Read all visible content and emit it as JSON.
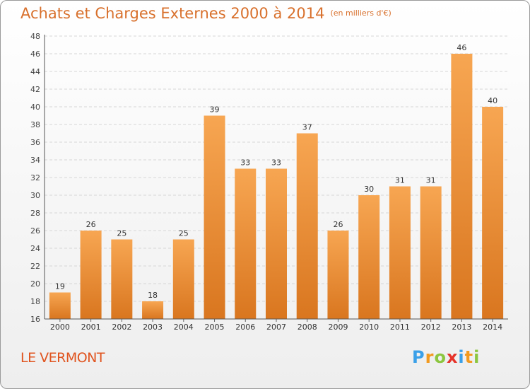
{
  "title": "Achats et Charges Externes 2000 à 2014",
  "subtitle": "(en milliers d'€)",
  "commune": "LE VERMONT",
  "logo": {
    "text": "Proxiti",
    "letters": [
      "P",
      "r",
      "o",
      "x",
      "i",
      "t",
      "i"
    ],
    "colors": [
      "#3aa0e8",
      "#f29a1f",
      "#8cc63f",
      "#e6332a",
      "#3aa0e8",
      "#f29a1f",
      "#8cc63f"
    ]
  },
  "colors": {
    "bar_light": "#f7a652",
    "bar_dark": "#d9761f",
    "title": "#d8702c",
    "commune": "#e0541f"
  },
  "chart_data": {
    "type": "bar",
    "categories": [
      "2000",
      "2001",
      "2002",
      "2003",
      "2004",
      "2005",
      "2006",
      "2007",
      "2008",
      "2009",
      "2010",
      "2011",
      "2012",
      "2013",
      "2014"
    ],
    "values": [
      19,
      26,
      25,
      18,
      25,
      39,
      33,
      33,
      37,
      26,
      30,
      31,
      31,
      46,
      40
    ],
    "ylim": [
      16,
      48
    ],
    "yticks": [
      16,
      18,
      20,
      22,
      24,
      26,
      28,
      30,
      32,
      34,
      36,
      38,
      40,
      42,
      44,
      46,
      48
    ],
    "grid": true,
    "data_labels": true
  }
}
